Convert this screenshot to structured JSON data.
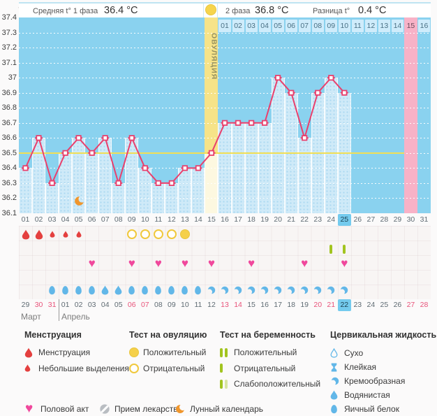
{
  "header": {
    "unit": "°C",
    "phase1_label": "Средняя t° 1 фаза",
    "phase1_value": "36.4 °C",
    "phase2_label": "2 фаза",
    "phase2_value": "36.8 °C",
    "diff_label": "Разница t°",
    "diff_value": "0.4 °C"
  },
  "chart_data": {
    "type": "line",
    "ylabel": "°C",
    "ylim": [
      36.1,
      37.4
    ],
    "ytick_step": 0.1,
    "yticks": [
      "37.4",
      "37.3",
      "37.2",
      "37.1",
      "37",
      "36.9",
      "36.8",
      "36.7",
      "36.6",
      "36.5",
      "36.4",
      "36.3",
      "36.2",
      "36.1"
    ],
    "cycle_days": [
      "01",
      "02",
      "03",
      "04",
      "05",
      "06",
      "07",
      "08",
      "09",
      "10",
      "11",
      "12",
      "13",
      "14",
      "15",
      "16",
      "17",
      "18",
      "19",
      "20",
      "21",
      "22",
      "23",
      "24",
      "25",
      "26",
      "27",
      "28",
      "29",
      "30",
      "31"
    ],
    "temperatures": [
      36.4,
      36.6,
      36.3,
      36.5,
      36.6,
      36.5,
      36.6,
      36.3,
      36.6,
      36.4,
      36.3,
      36.3,
      36.4,
      36.4,
      36.5,
      36.7,
      36.7,
      36.7,
      36.7,
      37.0,
      36.9,
      36.6,
      36.9,
      37.0,
      36.9,
      null,
      null,
      null,
      null,
      null,
      null
    ],
    "coverline": 36.5,
    "ovulation_day": 15,
    "ovulation_label": "ОВУЛЯЦИЯ",
    "expected_period_day": 30,
    "current_cycle_day": 25,
    "moon_day": 5,
    "phase2_days": [
      "01",
      "02",
      "03",
      "04",
      "05",
      "06",
      "07",
      "08",
      "09",
      "10",
      "11",
      "12",
      "13",
      "14",
      "15",
      "16"
    ],
    "phase2_highlight_day": "15",
    "grid": "dotted-white",
    "legend_position": "bottom"
  },
  "events": {
    "menstruation_heavy_days": [
      1,
      2
    ],
    "menstruation_light_days": [
      3,
      4,
      5
    ],
    "ovulation_test_negative_days": [
      9,
      10,
      11,
      12
    ],
    "ovulation_test_positive_days": [
      13
    ],
    "pregnancy_test_negative_days": [
      24,
      25
    ],
    "intercourse_days": [
      6,
      9,
      11,
      13,
      15,
      18,
      22,
      25
    ],
    "cervical_fluid": {
      "eggwhite_days": [
        3,
        4,
        5,
        6,
        9,
        10,
        11,
        12,
        13,
        14
      ],
      "watery_days": [
        7,
        8
      ],
      "creamy_days": [
        15,
        16,
        17,
        18,
        19,
        20,
        21,
        22,
        23,
        24,
        25
      ]
    }
  },
  "calendar": {
    "dates": [
      "29",
      "30",
      "31",
      "01",
      "02",
      "03",
      "04",
      "05",
      "06",
      "07",
      "08",
      "09",
      "10",
      "11",
      "12",
      "13",
      "14",
      "15",
      "16",
      "17",
      "18",
      "19",
      "20",
      "21",
      "22",
      "23",
      "24",
      "25",
      "26",
      "27",
      "28"
    ],
    "red_indices": [
      1,
      2,
      8,
      9,
      15,
      16,
      22,
      23,
      29,
      30
    ],
    "current_index": 24,
    "month_divider_index": 3,
    "months": [
      {
        "label": "Март"
      },
      {
        "label": "Апрель"
      }
    ]
  },
  "legend": {
    "sections": [
      {
        "title": "Менструация",
        "items": [
          {
            "icon": "drop-big",
            "label": "Менструация"
          },
          {
            "icon": "drop-small",
            "label": "Небольшие выделения"
          }
        ]
      },
      {
        "title": "Тест на овуляцию",
        "items": [
          {
            "icon": "circle-filled",
            "label": "Положительный"
          },
          {
            "icon": "circle-outline",
            "label": "Отрицательный"
          }
        ]
      },
      {
        "title": "Тест на беременность",
        "items": [
          {
            "icon": "bars-two",
            "label": "Положительный"
          },
          {
            "icon": "bar-one",
            "label": "Отрицательный"
          },
          {
            "icon": "bars-weak",
            "label": "Слабоположительный"
          }
        ]
      },
      {
        "title": "Цервикальная жидкость",
        "items": [
          {
            "icon": "drop-outline",
            "label": "Сухо"
          },
          {
            "icon": "sticky",
            "label": "Клейкая"
          },
          {
            "icon": "comma",
            "label": "Кремообразная"
          },
          {
            "icon": "drop-blue",
            "label": "Водянистая"
          },
          {
            "icon": "egg",
            "label": "Яичный белок"
          }
        ]
      }
    ],
    "footer": [
      {
        "icon": "heart",
        "label": "Половой акт"
      },
      {
        "icon": "pill",
        "label": "Прием лекарств"
      },
      {
        "icon": "moon",
        "label": "Лунный календарь"
      }
    ]
  },
  "colors": {
    "plot_bg": "#8ad2ef",
    "bar_fill": "#cfeaf8",
    "ovulation_band": "#f6e388",
    "ovulation_bar": "#fdf8e0",
    "expected_period_band": "#f8b2c7",
    "coverline": "#f2df54",
    "temp_line": "#e9406d",
    "day_cell": "#cfecfb",
    "current_day_highlight": "#74cbee",
    "menstruation_red": "#e4403f",
    "ovulation_test_yellow": "#f0c83c",
    "pregnancy_test_green": "#a2c41f",
    "intercourse_pink": "#f0489c",
    "fluid_blue": "#62b7e8",
    "moon_orange": "#f0962c",
    "weekend_red": "#e8537a",
    "pill_gray": "#b9bdc2"
  }
}
